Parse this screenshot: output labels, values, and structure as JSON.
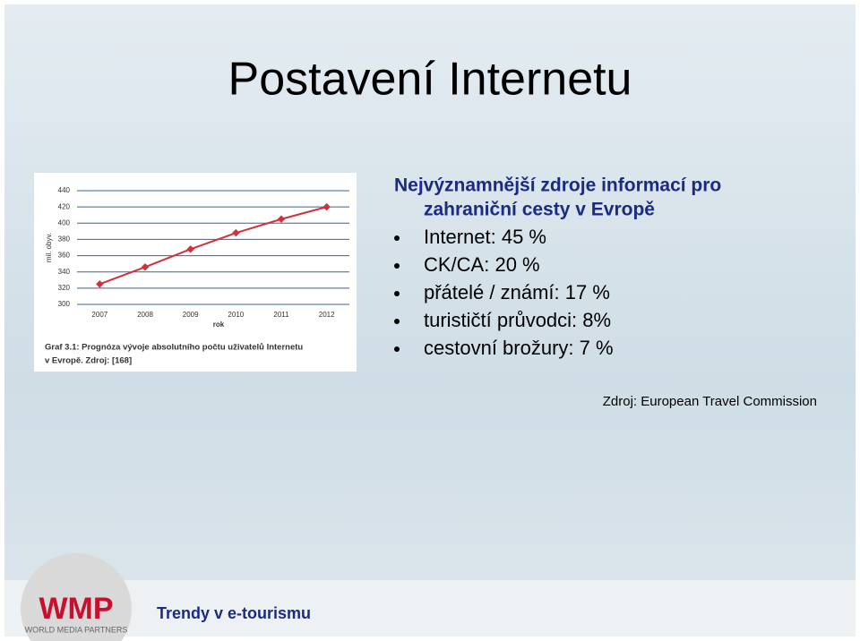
{
  "title": "Postavení Internetu",
  "heading": [
    "Nejvýznamnější zdroje informací pro",
    "zahraniční cesty v Evropě"
  ],
  "bullets": [
    "Internet: 45 %",
    "CK/CA: 20 %",
    "přátelé / známí: 17 %",
    "turističtí průvodci: 8%",
    "cestovní brožury: 7 %"
  ],
  "source": "Zdroj: European Travel Commission",
  "footer": "Trendy v e-tourismu",
  "logo": {
    "text": "WMP",
    "subtitle": "WORLD MEDIA PARTNERS"
  },
  "chart_data": {
    "type": "line",
    "y_label": "mil. obyv.",
    "x_label": "rok",
    "caption": [
      "Graf 3.1: Prognóza vývoje absolutního počtu uživatelů Internetu",
      "v Evropě. Zdroj: [168]"
    ],
    "categories": [
      "2007",
      "2008",
      "2009",
      "2010",
      "2011",
      "2012"
    ],
    "values": [
      325,
      346,
      368,
      388,
      405,
      420
    ],
    "color": "#d0323c",
    "ylim": [
      300,
      440
    ],
    "yticks": [
      300,
      320,
      340,
      360,
      380,
      400,
      420,
      440
    ],
    "grid": true
  }
}
